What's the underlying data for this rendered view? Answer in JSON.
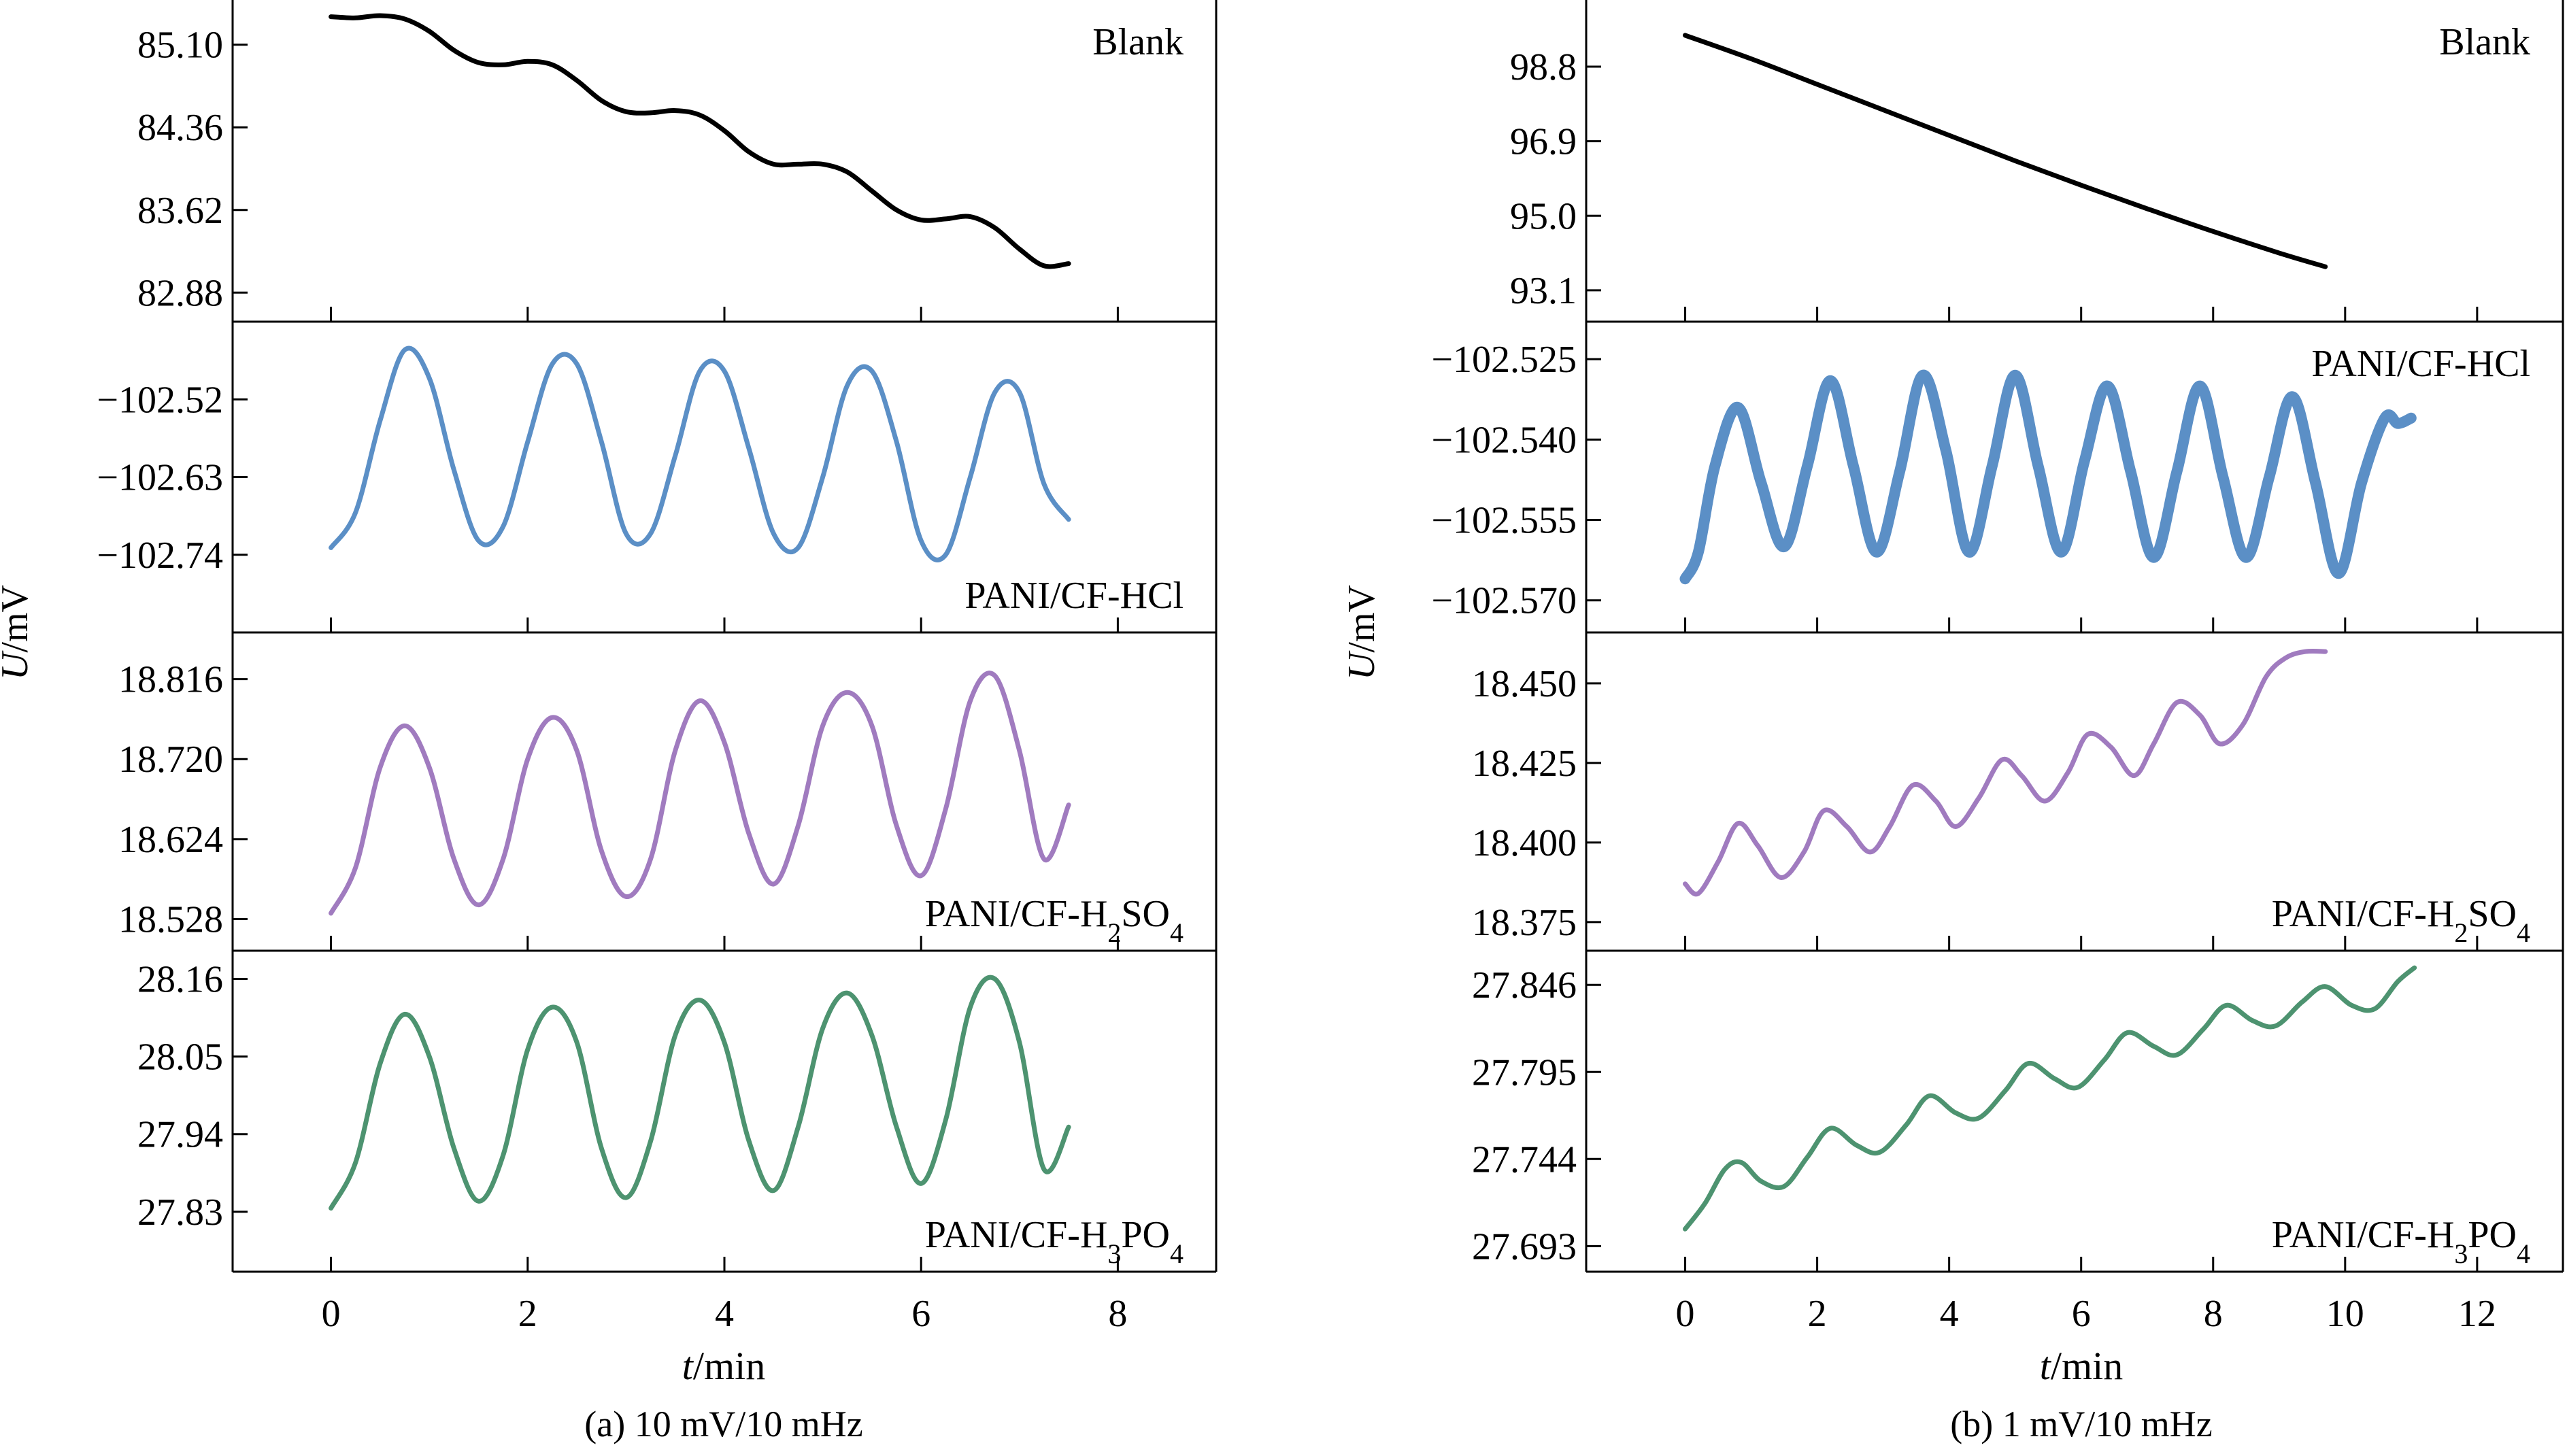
{
  "chart_data": [
    {
      "type": "line",
      "caption": "(a) 10 mV/10 mHz",
      "xlabel": "t/min",
      "ylabel": "U/mV",
      "xlim": [
        -1.0,
        9.0
      ],
      "xticks": [
        0,
        2,
        4,
        6,
        8
      ],
      "panels": [
        {
          "name": "Blank",
          "label_position": "top-right",
          "color": "#000000",
          "ylim": [
            82.62,
            85.5
          ],
          "yticks": [
            "85.10",
            "84.36",
            "83.62",
            "82.88"
          ],
          "x": [
            0.0,
            0.25,
            0.5,
            0.75,
            1.0,
            1.25,
            1.5,
            1.75,
            2.0,
            2.25,
            2.5,
            2.75,
            3.0,
            3.25,
            3.5,
            3.75,
            4.0,
            4.25,
            4.5,
            4.75,
            5.0,
            5.25,
            5.5,
            5.75,
            6.0,
            6.25,
            6.5,
            6.75,
            7.0,
            7.25,
            7.5
          ],
          "y": [
            85.35,
            85.34,
            85.36,
            85.33,
            85.22,
            85.05,
            84.94,
            84.92,
            84.95,
            84.92,
            84.78,
            84.6,
            84.5,
            84.49,
            84.51,
            84.47,
            84.33,
            84.14,
            84.03,
            84.03,
            84.03,
            83.96,
            83.79,
            83.62,
            83.53,
            83.54,
            83.56,
            83.46,
            83.27,
            83.12,
            83.14
          ]
        },
        {
          "name": "PANI/CF-HCl",
          "label_position": "bottom-right",
          "color": "#5b8fc6",
          "ylim": [
            -102.85,
            -102.41
          ],
          "yticks": [
            "-102.52",
            "-102.63",
            "-102.74"
          ],
          "x": [
            0.0,
            0.25,
            0.5,
            0.75,
            1.0,
            1.25,
            1.5,
            1.75,
            2.0,
            2.25,
            2.5,
            2.75,
            3.0,
            3.25,
            3.5,
            3.75,
            4.0,
            4.25,
            4.5,
            4.75,
            5.0,
            5.25,
            5.5,
            5.75,
            6.0,
            6.25,
            6.5,
            6.75,
            7.0,
            7.25,
            7.5
          ],
          "y": [
            -102.73,
            -102.68,
            -102.55,
            -102.45,
            -102.49,
            -102.62,
            -102.72,
            -102.7,
            -102.58,
            -102.47,
            -102.47,
            -102.58,
            -102.71,
            -102.71,
            -102.6,
            -102.48,
            -102.48,
            -102.59,
            -102.71,
            -102.73,
            -102.63,
            -102.5,
            -102.48,
            -102.58,
            -102.72,
            -102.74,
            -102.63,
            -102.51,
            -102.51,
            -102.64,
            -102.69
          ]
        },
        {
          "name": "PANI/CF-H2SO4",
          "label_position": "bottom-right",
          "color": "#a07bbf",
          "ylim": [
            18.49,
            18.872
          ],
          "yticks": [
            "18.816",
            "18.720",
            "18.624",
            "18.528"
          ],
          "x": [
            0.0,
            0.25,
            0.5,
            0.75,
            1.0,
            1.25,
            1.5,
            1.75,
            2.0,
            2.25,
            2.5,
            2.75,
            3.0,
            3.25,
            3.5,
            3.75,
            4.0,
            4.25,
            4.5,
            4.75,
            5.0,
            5.25,
            5.5,
            5.75,
            6.0,
            6.25,
            6.5,
            6.75,
            7.0,
            7.25,
            7.5
          ],
          "y": [
            18.535,
            18.59,
            18.71,
            18.76,
            18.71,
            18.6,
            18.545,
            18.6,
            18.72,
            18.77,
            18.73,
            18.61,
            18.555,
            18.6,
            18.73,
            18.79,
            18.74,
            18.63,
            18.57,
            18.64,
            18.76,
            18.8,
            18.76,
            18.64,
            18.58,
            18.66,
            18.79,
            18.82,
            18.73,
            18.6,
            18.665
          ]
        },
        {
          "name": "PANI/CF-H3PO4",
          "label_position": "bottom-right",
          "color": "#4d9370",
          "ylim": [
            27.745,
            28.2
          ],
          "yticks": [
            "28.16",
            "28.05",
            "27.94",
            "27.83"
          ],
          "x": [
            0.0,
            0.25,
            0.5,
            0.75,
            1.0,
            1.25,
            1.5,
            1.75,
            2.0,
            2.25,
            2.5,
            2.75,
            3.0,
            3.25,
            3.5,
            3.75,
            4.0,
            4.25,
            4.5,
            4.75,
            5.0,
            5.25,
            5.5,
            5.75,
            6.0,
            6.25,
            6.5,
            6.75,
            7.0,
            7.25,
            7.5
          ],
          "y": [
            27.835,
            27.9,
            28.04,
            28.11,
            28.05,
            27.92,
            27.845,
            27.91,
            28.06,
            28.12,
            28.07,
            27.92,
            27.85,
            27.93,
            28.08,
            28.13,
            28.07,
            27.93,
            27.86,
            27.95,
            28.09,
            28.14,
            28.08,
            27.95,
            27.87,
            27.96,
            28.12,
            28.16,
            28.07,
            27.89,
            27.95
          ]
        }
      ]
    },
    {
      "type": "line",
      "caption": "(b) 1 mV/10 mHz",
      "xlabel": "t/min",
      "ylabel": "U/mV",
      "xlim": [
        -1.5,
        13.3
      ],
      "xticks": [
        0,
        2,
        4,
        6,
        8,
        10,
        12
      ],
      "panels": [
        {
          "name": "Blank",
          "label_position": "top-right",
          "color": "#000000",
          "ylim": [
            92.3,
            100.5
          ],
          "yticks": [
            "98.8",
            "96.9",
            "95.0",
            "93.1"
          ],
          "x": [
            0.0,
            1.0,
            2.0,
            3.0,
            4.0,
            5.0,
            6.0,
            7.0,
            8.0,
            9.0,
            9.7
          ],
          "y": [
            99.6,
            99.0,
            98.35,
            97.7,
            97.05,
            96.4,
            95.78,
            95.18,
            94.6,
            94.05,
            93.7
          ]
        },
        {
          "name": "PANI/CF-HCl",
          "label_position": "top-right",
          "color": "#5b8fc6",
          "line_width": 16,
          "ylim": [
            -102.576,
            -102.518
          ],
          "yticks": [
            "-102.525",
            "-102.540",
            "-102.555",
            "-102.570"
          ],
          "x": [
            0.0,
            0.2,
            0.45,
            0.8,
            1.15,
            1.5,
            1.85,
            2.2,
            2.55,
            2.9,
            3.25,
            3.6,
            3.95,
            4.3,
            4.65,
            5.0,
            5.35,
            5.7,
            6.05,
            6.4,
            6.75,
            7.1,
            7.45,
            7.8,
            8.15,
            8.5,
            8.85,
            9.2,
            9.55,
            9.9,
            10.25,
            10.6,
            10.8,
            11.0
          ],
          "y": [
            -102.566,
            -102.561,
            -102.545,
            -102.534,
            -102.548,
            -102.56,
            -102.545,
            -102.529,
            -102.545,
            -102.561,
            -102.546,
            -102.528,
            -102.542,
            -102.561,
            -102.545,
            -102.528,
            -102.545,
            -102.561,
            -102.544,
            -102.53,
            -102.546,
            -102.562,
            -102.546,
            -102.53,
            -102.547,
            -102.562,
            -102.547,
            -102.532,
            -102.548,
            -102.565,
            -102.548,
            -102.536,
            -102.537,
            -102.536
          ]
        },
        {
          "name": "PANI/CF-H2SO4",
          "label_position": "bottom-right",
          "color": "#a07bbf",
          "ylim": [
            18.366,
            18.466
          ],
          "yticks": [
            "18.450",
            "18.425",
            "18.400",
            "18.375"
          ],
          "x": [
            0.0,
            0.2,
            0.5,
            0.8,
            1.1,
            1.45,
            1.8,
            2.1,
            2.45,
            2.8,
            3.1,
            3.45,
            3.8,
            4.1,
            4.45,
            4.8,
            5.1,
            5.45,
            5.8,
            6.1,
            6.45,
            6.8,
            7.1,
            7.45,
            7.8,
            8.1,
            8.45,
            8.8,
            9.1,
            9.4,
            9.7
          ],
          "y": [
            18.387,
            18.384,
            18.394,
            18.406,
            18.399,
            18.389,
            18.397,
            18.41,
            18.405,
            18.397,
            18.405,
            18.418,
            18.413,
            18.405,
            18.414,
            18.426,
            18.421,
            18.413,
            18.422,
            18.434,
            18.43,
            18.421,
            18.431,
            18.444,
            18.44,
            18.431,
            18.437,
            18.452,
            18.458,
            18.46,
            18.46
          ]
        },
        {
          "name": "PANI/CF-H3PO4",
          "label_position": "bottom-right",
          "color": "#4d9370",
          "ylim": [
            27.678,
            27.866
          ],
          "yticks": [
            "27.846",
            "27.795",
            "27.744",
            "27.693"
          ],
          "x": [
            0.0,
            0.3,
            0.6,
            0.85,
            1.15,
            1.5,
            1.85,
            2.2,
            2.6,
            2.95,
            3.35,
            3.7,
            4.1,
            4.45,
            4.85,
            5.2,
            5.6,
            5.95,
            6.35,
            6.7,
            7.1,
            7.45,
            7.85,
            8.2,
            8.6,
            8.95,
            9.35,
            9.7,
            10.1,
            10.45,
            10.8,
            11.05
          ],
          "y": [
            27.703,
            27.718,
            27.738,
            27.742,
            27.731,
            27.728,
            27.745,
            27.762,
            27.752,
            27.748,
            27.764,
            27.781,
            27.771,
            27.768,
            27.784,
            27.8,
            27.791,
            27.786,
            27.802,
            27.818,
            27.81,
            27.805,
            27.82,
            27.834,
            27.825,
            27.822,
            27.836,
            27.845,
            27.834,
            27.832,
            27.848,
            27.856
          ]
        }
      ]
    }
  ]
}
